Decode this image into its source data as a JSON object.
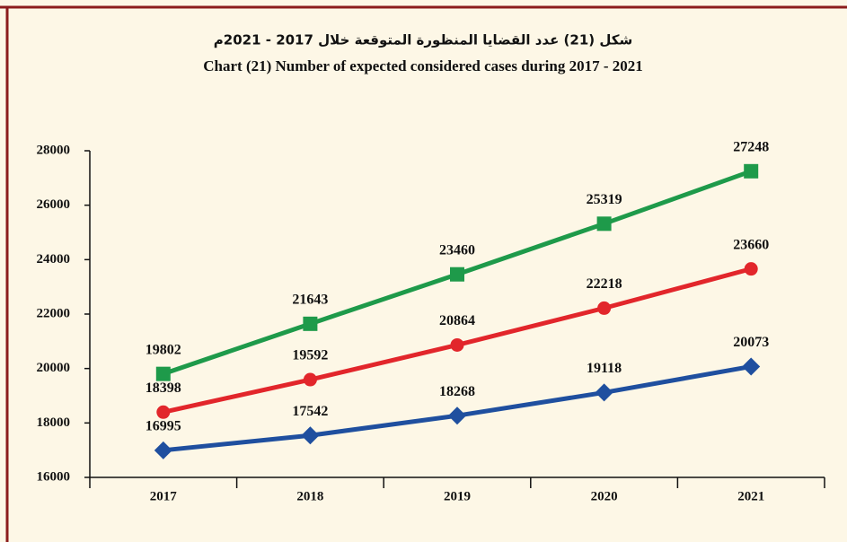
{
  "chart_data": {
    "type": "line",
    "title_ar": "شكل (21) عدد القضايا المنظورة المتوقعة خلال 2017 - 2021م",
    "title": "Chart (21) Number of expected considered cases during  2017 - 2021",
    "categories": [
      "2017",
      "2018",
      "2019",
      "2020",
      "2021"
    ],
    "series": [
      {
        "color": "#1e9a4a",
        "marker": "square",
        "values": [
          19802,
          21643,
          23460,
          25319,
          27248
        ]
      },
      {
        "color": "#e2262b",
        "marker": "circle",
        "values": [
          18398,
          19592,
          20864,
          22218,
          23660
        ]
      },
      {
        "color": "#1f4f9f",
        "marker": "diamond",
        "values": [
          16995,
          17542,
          18268,
          19118,
          20073
        ]
      }
    ],
    "ylim": [
      16000,
      28000
    ],
    "yticks": [
      16000,
      18000,
      20000,
      22000,
      24000,
      26000,
      28000
    ]
  }
}
